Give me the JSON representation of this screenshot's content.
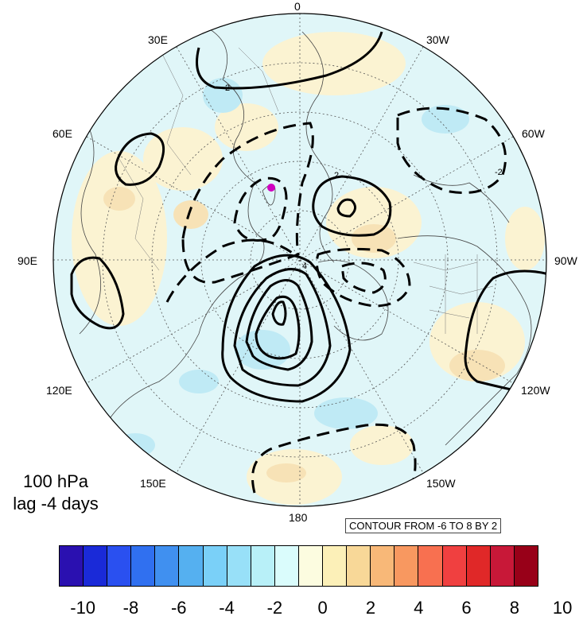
{
  "title": {
    "level": "100 hPa",
    "lag": "lag -4 days"
  },
  "map": {
    "projection": "north-polar-stereographic",
    "longitude_labels": {
      "0": "0",
      "30W": "30W",
      "60W": "60W",
      "90W": "90W",
      "120W": "120W",
      "150W": "150W",
      "180": "180",
      "150E": "150E",
      "120E": "120E",
      "90E": "90E",
      "60E": "60E",
      "30E": "30E"
    },
    "contours": {
      "info": "CONTOUR FROM -6 TO 8 BY 2",
      "min": -6,
      "max": 8,
      "interval": 2,
      "labels_shown": [
        "2",
        "-2",
        "2",
        "4"
      ]
    },
    "marker": {
      "color": "#d000c0"
    }
  },
  "colorbar": {
    "colors": [
      "#2a10b0",
      "#1a2ad8",
      "#2a50f0",
      "#3070f0",
      "#4090f0",
      "#55b0f0",
      "#7ad0f8",
      "#98e0f8",
      "#b8f0f8",
      "#dafcfc",
      "#fcfce0",
      "#fcf0b8",
      "#f8d898",
      "#f8b878",
      "#f89860",
      "#f87050",
      "#f04040",
      "#e02828",
      "#c81838",
      "#980018"
    ],
    "tick_labels": [
      "-10",
      "-8",
      "-6",
      "-4",
      "-2",
      "0",
      "2",
      "4",
      "6",
      "8",
      "10"
    ]
  }
}
